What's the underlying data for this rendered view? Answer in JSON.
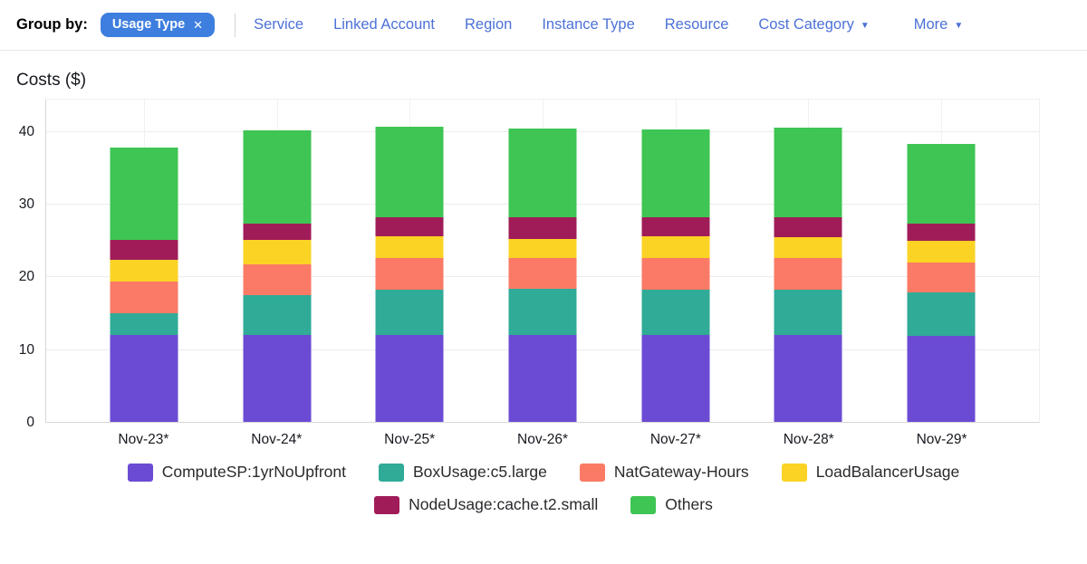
{
  "colors": {
    "chip_bg": "#3d7edf",
    "link_blue": "#4c71d8",
    "grid": "#ececec",
    "axis": "#d7d7d7"
  },
  "header": {
    "group_by_label": "Group by:",
    "chip": {
      "label": "Usage Type",
      "close_icon": "✕"
    },
    "links": [
      {
        "label": "Service",
        "caret": false
      },
      {
        "label": "Linked Account",
        "caret": false
      },
      {
        "label": "Region",
        "caret": false
      },
      {
        "label": "Instance Type",
        "caret": false
      },
      {
        "label": "Resource",
        "caret": false
      },
      {
        "label": "Cost Category",
        "caret": true
      },
      {
        "label": "More",
        "caret": true
      }
    ]
  },
  "chart": {
    "title": "Costs ($)"
  },
  "chart_data": {
    "type": "bar",
    "stacked": true,
    "title": "Costs ($)",
    "xlabel": "",
    "ylabel": "Costs ($)",
    "categories": [
      "Nov-23*",
      "Nov-24*",
      "Nov-25*",
      "Nov-26*",
      "Nov-27*",
      "Nov-28*",
      "Nov-29*"
    ],
    "series": [
      {
        "name": "ComputeSP:1yrNoUpfront",
        "color": "#6b4bd3",
        "values": [
          12.0,
          12.0,
          11.9,
          11.9,
          11.9,
          11.9,
          11.8
        ]
      },
      {
        "name": "BoxUsage:c5.large",
        "color": "#2fab97",
        "values": [
          2.9,
          5.4,
          6.3,
          6.4,
          6.3,
          6.3,
          6.0
        ]
      },
      {
        "name": "NatGateway-Hours",
        "color": "#fa7a66",
        "values": [
          4.4,
          4.3,
          4.4,
          4.2,
          4.3,
          4.4,
          4.1
        ]
      },
      {
        "name": "LoadBalancerUsage",
        "color": "#fbd324",
        "values": [
          3.0,
          3.3,
          2.9,
          2.7,
          3.0,
          2.8,
          3.0
        ]
      },
      {
        "name": "NodeUsage:cache.t2.small",
        "color": "#a01c59",
        "values": [
          2.7,
          2.3,
          2.7,
          3.0,
          2.7,
          2.8,
          2.4
        ]
      },
      {
        "name": "Others",
        "color": "#3ec553",
        "values": [
          12.7,
          12.8,
          12.4,
          12.2,
          12.1,
          12.3,
          11.0
        ]
      }
    ],
    "totals": [
      37.7,
      40.1,
      40.6,
      40.4,
      40.3,
      40.5,
      38.3
    ],
    "y_ticks": [
      0,
      10,
      20,
      30,
      40
    ],
    "ylim": [
      0,
      44.6
    ],
    "grid": true,
    "legend_position": "bottom",
    "legend_row_split": 4
  }
}
